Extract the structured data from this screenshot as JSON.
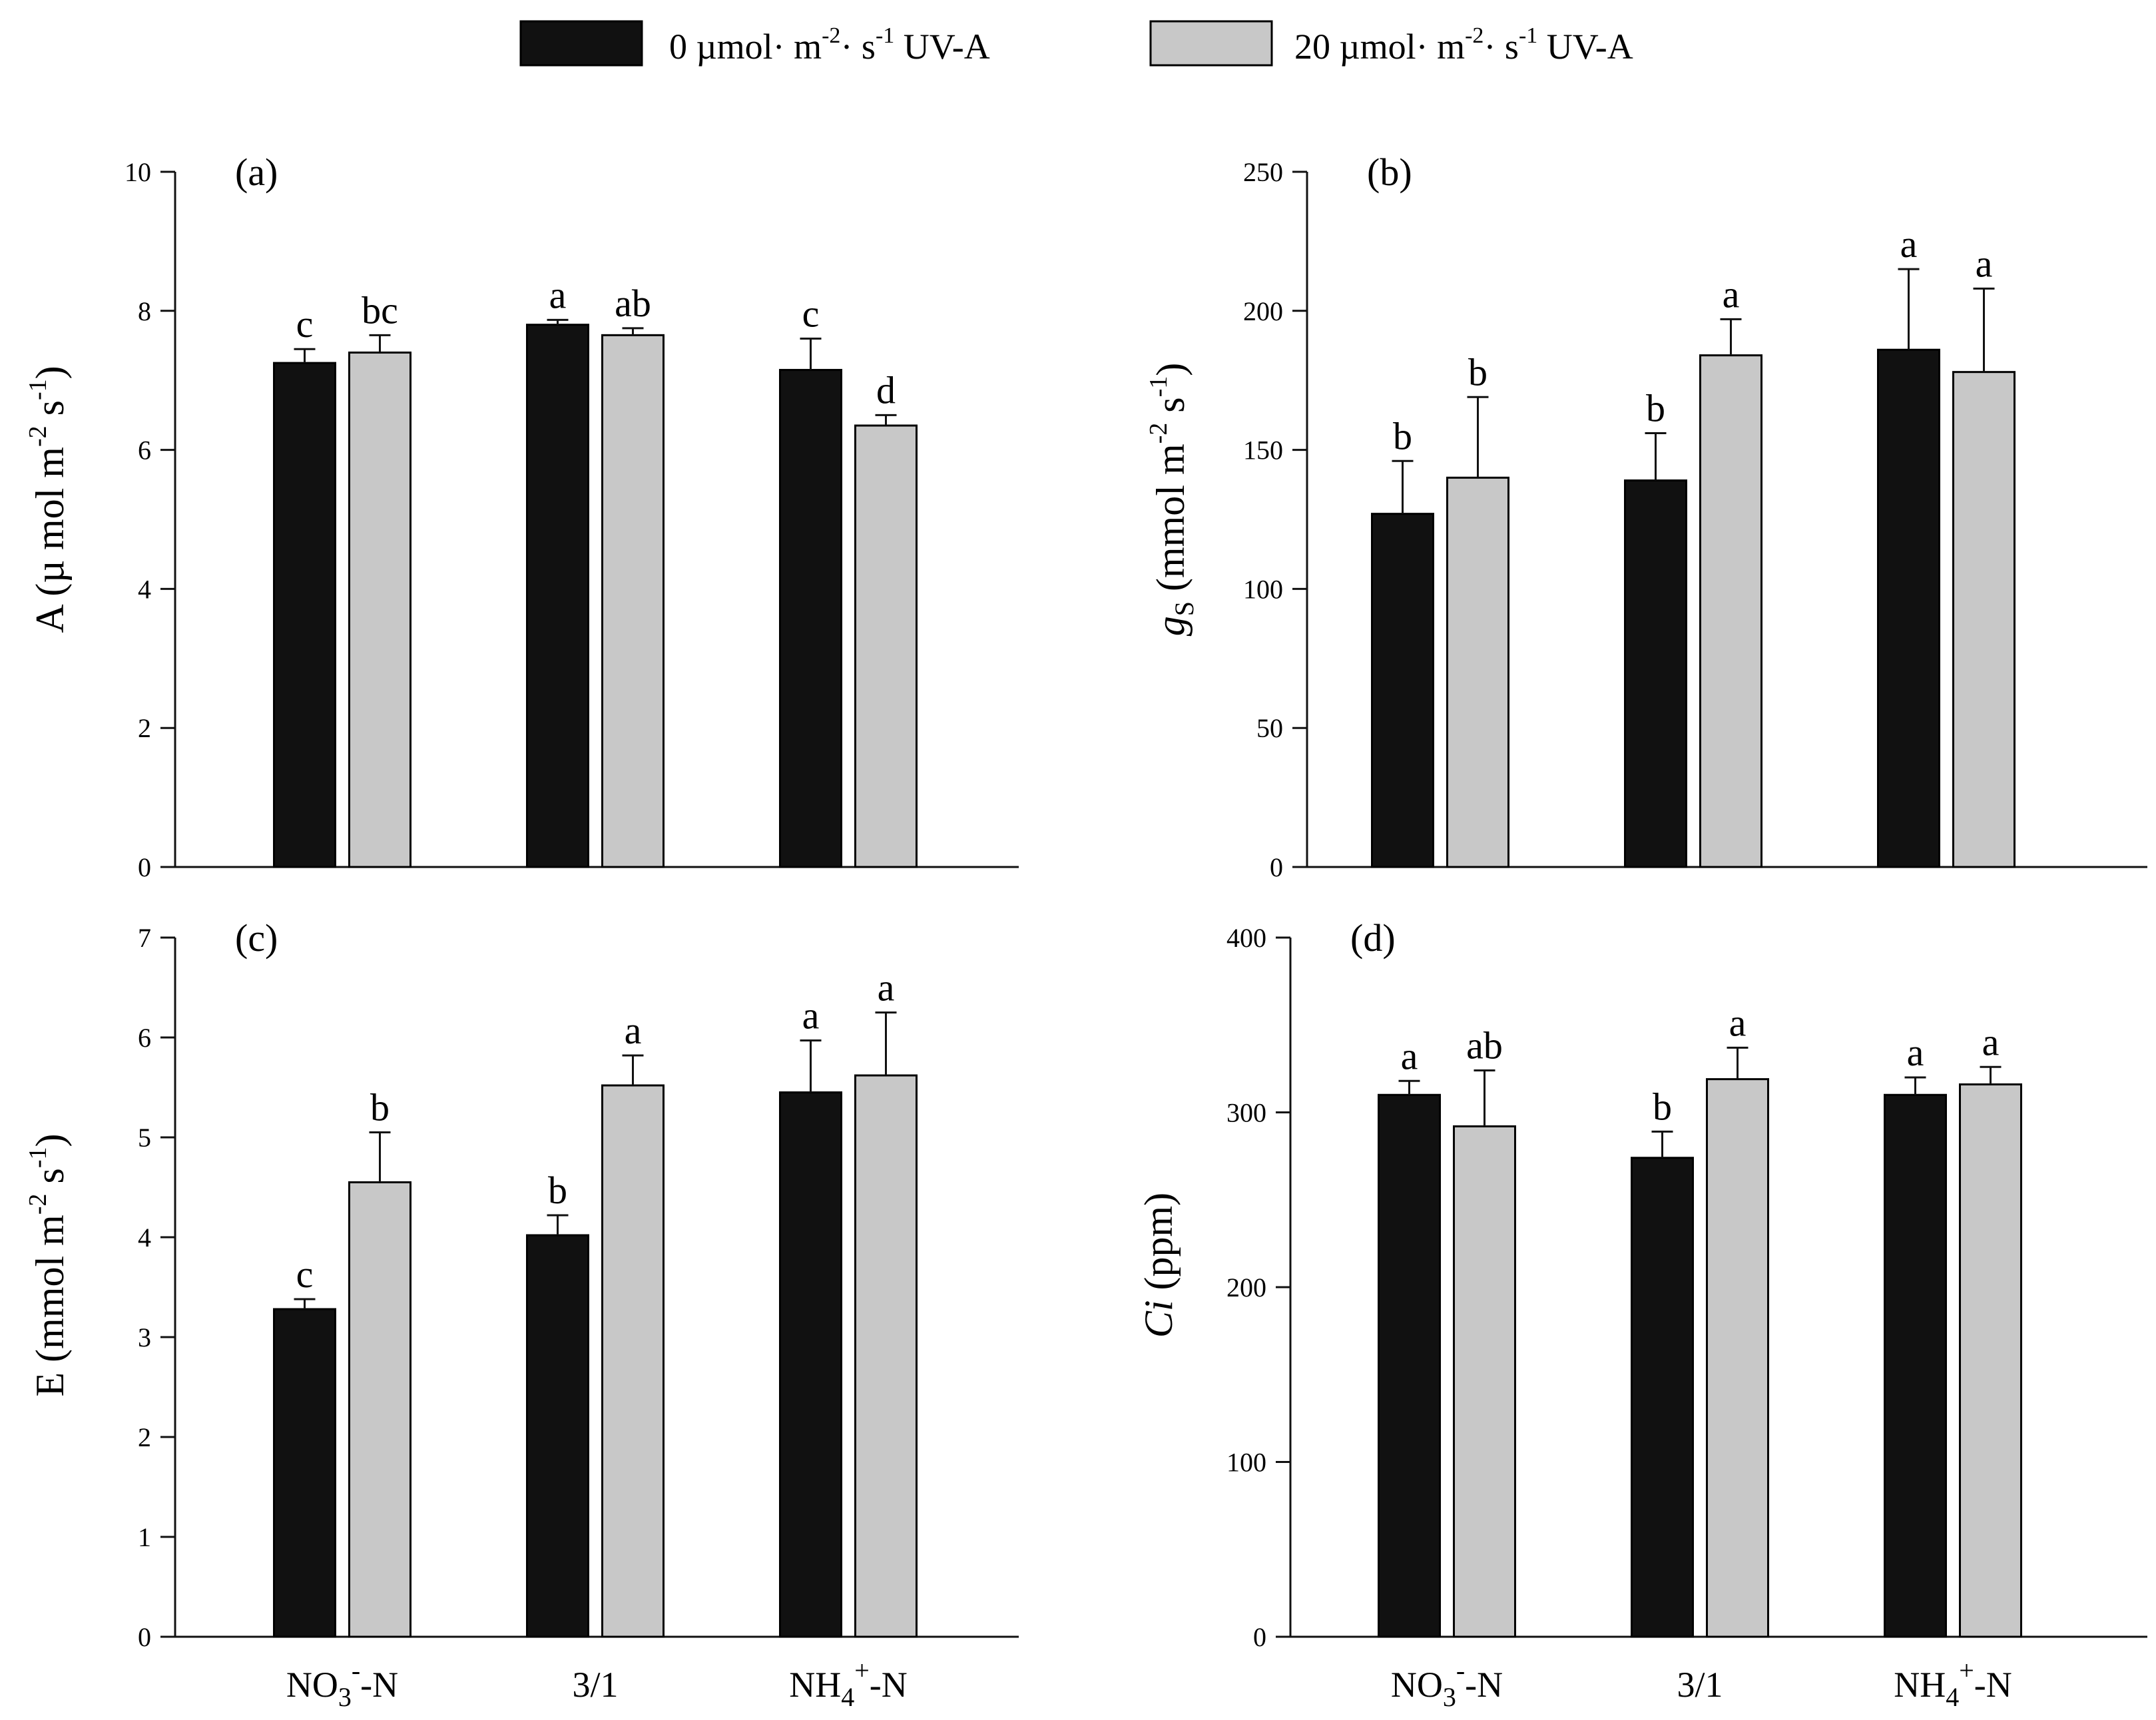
{
  "legend": {
    "items": [
      {
        "name": "0 µmol· m-2· s-1 UV-A",
        "prefix": "0 µmol· m",
        "exp1": "-2",
        "mid": "· s",
        "exp2": "-1",
        "suffix": " UV-A",
        "color": "#111111"
      },
      {
        "name": "20 µmol· m-2· s-1 UV-A",
        "prefix": "20 µmol· m",
        "exp1": "-2",
        "mid": "· s",
        "exp2": "-1",
        "suffix": " UV-A",
        "color": "#c8c8c8"
      }
    ]
  },
  "categories": [
    "NO3--N",
    "3/1",
    "NH4+-N"
  ],
  "category_labels": [
    {
      "base": "NO",
      "sub": "3",
      "sup": "-",
      "tail": "-N"
    },
    {
      "base": "3/1",
      "sub": "",
      "sup": "",
      "tail": ""
    },
    {
      "base": "NH",
      "sub": "4",
      "sup": "+",
      "tail": "-N"
    }
  ],
  "chart_data": [
    {
      "type": "bar",
      "panel": "(a)",
      "ylabel": "A (µ mol m-2 s-1)",
      "ylabel_parts": {
        "a": "A (µ mol m",
        "b": "-2",
        "c": " s",
        "d": "-1",
        "e": ")"
      },
      "ylim": [
        0,
        10
      ],
      "yticks": [
        0,
        2,
        4,
        6,
        8,
        10
      ],
      "categories": [
        "NO3--N",
        "3/1",
        "NH4+-N"
      ],
      "series": [
        {
          "name": "0 µmol· m-2· s-1 UV-A",
          "values": [
            7.25,
            7.8,
            7.15
          ],
          "errors": [
            0.2,
            0.07,
            0.45
          ],
          "letters": [
            "c",
            "a",
            "c"
          ]
        },
        {
          "name": "20 µmol· m-2· s-1 UV-A",
          "values": [
            7.4,
            7.65,
            6.35
          ],
          "errors": [
            0.25,
            0.1,
            0.15
          ],
          "letters": [
            "bc",
            "ab",
            "d"
          ]
        }
      ]
    },
    {
      "type": "bar",
      "panel": "(b)",
      "ylabel": "gS (mmol m-2 s-1)",
      "ylabel_parts": {
        "a": "g",
        "b": "S",
        "c": " (mmol m",
        "d": "-2",
        "e": " s",
        "f": "-1",
        "g": ")"
      },
      "ylim": [
        0,
        250
      ],
      "yticks": [
        0,
        50,
        100,
        150,
        200,
        250
      ],
      "categories": [
        "NO3--N",
        "3/1",
        "NH4+-N"
      ],
      "series": [
        {
          "name": "0 µmol· m-2· s-1 UV-A",
          "values": [
            127,
            139,
            186
          ],
          "errors": [
            19,
            17,
            29
          ],
          "letters": [
            "b",
            "b",
            "a"
          ]
        },
        {
          "name": "20 µmol· m-2· s-1 UV-A",
          "values": [
            140,
            184,
            178
          ],
          "errors": [
            29,
            13,
            30
          ],
          "letters": [
            "b",
            "a",
            "a"
          ]
        }
      ]
    },
    {
      "type": "bar",
      "panel": "(c)",
      "ylabel": "E (mmol m-2 s-1)",
      "ylabel_parts": {
        "a": "E (mmol m",
        "b": "-2",
        "c": " s",
        "d": "-1",
        "e": ")"
      },
      "ylim": [
        0,
        7
      ],
      "yticks": [
        0,
        1,
        2,
        3,
        4,
        5,
        6,
        7
      ],
      "categories": [
        "NO3--N",
        "3/1",
        "NH4+-N"
      ],
      "series": [
        {
          "name": "0 µmol· m-2· s-1 UV-A",
          "values": [
            3.28,
            4.02,
            5.45
          ],
          "errors": [
            0.1,
            0.2,
            0.52
          ],
          "letters": [
            "c",
            "b",
            "a"
          ]
        },
        {
          "name": "20 µmol· m-2· s-1 UV-A",
          "values": [
            4.55,
            5.52,
            5.62
          ],
          "errors": [
            0.5,
            0.3,
            0.63
          ],
          "letters": [
            "b",
            "a",
            "a"
          ]
        }
      ]
    },
    {
      "type": "bar",
      "panel": "(d)",
      "ylabel": "Ci (ppm)",
      "ylabel_parts": {
        "a": "C",
        "b": "i",
        "c": " (ppm)"
      },
      "ylim": [
        0,
        400
      ],
      "yticks": [
        0,
        100,
        200,
        300,
        400
      ],
      "categories": [
        "NO3--N",
        "3/1",
        "NH4+-N"
      ],
      "series": [
        {
          "name": "0 µmol· m-2· s-1 UV-A",
          "values": [
            310,
            274,
            310
          ],
          "errors": [
            8,
            15,
            10
          ],
          "letters": [
            "a",
            "b",
            "a"
          ]
        },
        {
          "name": "20 µmol· m-2· s-1 UV-A",
          "values": [
            292,
            319,
            316
          ],
          "errors": [
            32,
            18,
            10
          ],
          "letters": [
            "ab",
            "a",
            "a"
          ]
        }
      ]
    }
  ]
}
